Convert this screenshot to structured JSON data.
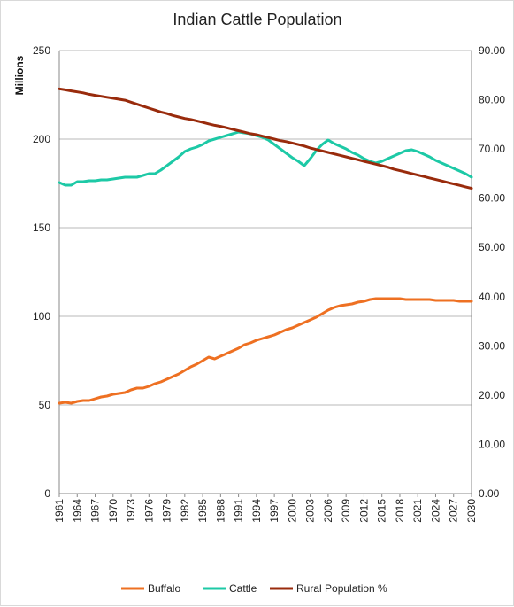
{
  "chart_data": {
    "type": "line",
    "title": "Indian Cattle Population",
    "ylabel": "Millions",
    "y2label": "",
    "xlabel": "",
    "ylim": [
      0,
      250
    ],
    "y2lim": [
      0,
      90
    ],
    "y_ticks": [
      "0",
      "50",
      "100",
      "150",
      "200",
      "250"
    ],
    "y2_ticks": [
      "0.00",
      "10.00",
      "20.00",
      "30.00",
      "40.00",
      "50.00",
      "60.00",
      "70.00",
      "80.00",
      "90.00"
    ],
    "x_ticks": [
      "1961",
      "1964",
      "1967",
      "1970",
      "1973",
      "1976",
      "1979",
      "1982",
      "1985",
      "1988",
      "1991",
      "1994",
      "1997",
      "2000",
      "2003",
      "2006",
      "2009",
      "2012",
      "2015",
      "2018",
      "2021",
      "2024",
      "2027",
      "2030"
    ],
    "grid": true,
    "legend_position": "bottom",
    "x": [
      1961,
      1962,
      1963,
      1964,
      1965,
      1966,
      1967,
      1968,
      1969,
      1970,
      1971,
      1972,
      1973,
      1974,
      1975,
      1976,
      1977,
      1978,
      1979,
      1980,
      1981,
      1982,
      1983,
      1984,
      1985,
      1986,
      1987,
      1988,
      1989,
      1990,
      1991,
      1992,
      1993,
      1994,
      1995,
      1996,
      1997,
      1998,
      1999,
      2000,
      2001,
      2002,
      2003,
      2004,
      2005,
      2006,
      2007,
      2008,
      2009,
      2010,
      2011,
      2012,
      2013,
      2014,
      2015,
      2016,
      2017,
      2018,
      2019,
      2020,
      2021,
      2022,
      2023,
      2024,
      2025,
      2026,
      2027,
      2028,
      2029,
      2030
    ],
    "series": [
      {
        "name": "Buffalo",
        "axis": "left",
        "color": "#ee7022",
        "values": [
          51,
          51.5,
          51,
          52,
          52.5,
          52.5,
          53.5,
          54.5,
          55,
          56,
          56.5,
          57,
          58.5,
          59.5,
          59.5,
          60.5,
          62,
          63,
          64.5,
          66,
          67.5,
          69.5,
          71.5,
          73,
          75,
          77,
          76,
          77.5,
          79,
          80.5,
          82,
          84,
          85,
          86.5,
          87.5,
          88.5,
          89.5,
          91,
          92.5,
          93.5,
          95,
          96.5,
          98,
          99.5,
          101.5,
          103.5,
          105,
          106,
          106.5,
          107,
          108,
          108.5,
          109.5,
          110,
          110,
          110,
          110,
          110,
          109.5,
          109.5,
          109.5,
          109.5,
          109.5,
          109,
          109,
          109,
          109,
          108.5,
          108.5,
          108.5
        ]
      },
      {
        "name": "Cattle",
        "axis": "left",
        "color": "#1dc9a6",
        "values": [
          175.5,
          174,
          174,
          176,
          176,
          176.5,
          176.5,
          177,
          177,
          177.5,
          178,
          178.5,
          178.5,
          178.5,
          179.5,
          180.5,
          180.5,
          182.5,
          185,
          187.5,
          190,
          193,
          194.5,
          195.5,
          197,
          199,
          200,
          201,
          202,
          203,
          204,
          203.5,
          203,
          202,
          201,
          199.5,
          197,
          194.5,
          192,
          189.5,
          187.5,
          185,
          189,
          193.5,
          197,
          199.5,
          197.5,
          196,
          194.5,
          192.5,
          191,
          189,
          187.5,
          186.5,
          187.5,
          189,
          190.5,
          192,
          193.5,
          194,
          193,
          191.5,
          190,
          188,
          186.5,
          185,
          183.5,
          182,
          180.5,
          178.5
        ]
      },
      {
        "name": "Rural Population %",
        "axis": "right",
        "color": "#992b0c",
        "values": [
          82.2,
          82,
          81.8,
          81.6,
          81.4,
          81.1,
          80.9,
          80.7,
          80.5,
          80.3,
          80.1,
          79.9,
          79.5,
          79.1,
          78.7,
          78.3,
          77.9,
          77.5,
          77.2,
          76.8,
          76.5,
          76.2,
          76,
          75.7,
          75.4,
          75.1,
          74.8,
          74.6,
          74.3,
          74,
          73.7,
          73.4,
          73.1,
          72.9,
          72.6,
          72.3,
          72,
          71.7,
          71.5,
          71.2,
          70.9,
          70.6,
          70.2,
          69.9,
          69.6,
          69.3,
          69,
          68.7,
          68.4,
          68.1,
          67.8,
          67.5,
          67.2,
          66.9,
          66.6,
          66.3,
          65.9,
          65.6,
          65.3,
          65,
          64.7,
          64.4,
          64.1,
          63.8,
          63.5,
          63.2,
          62.9,
          62.6,
          62.3,
          62
        ]
      }
    ]
  }
}
